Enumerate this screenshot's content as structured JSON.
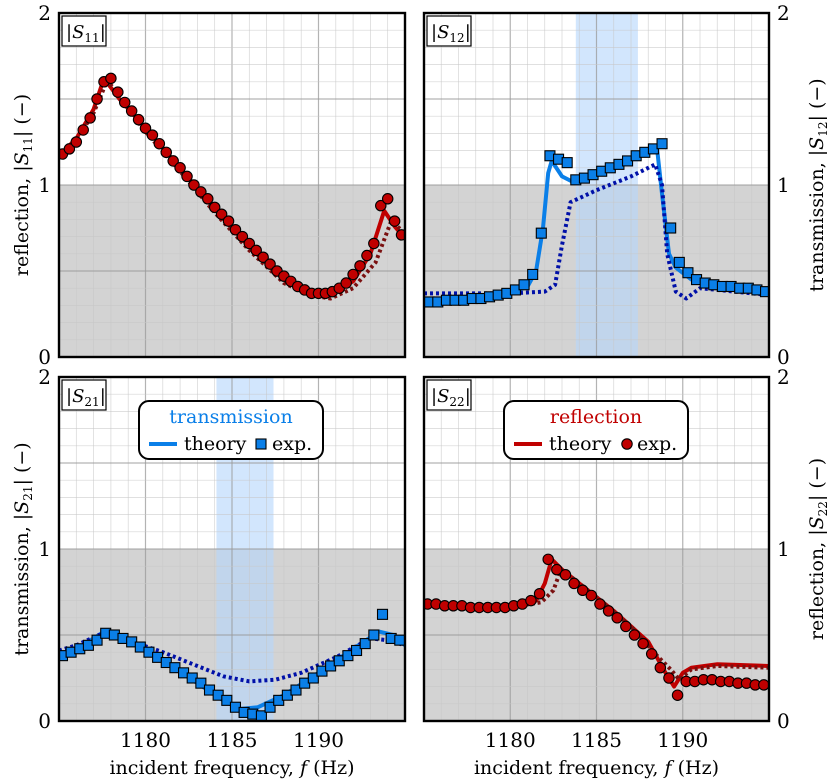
{
  "figure": {
    "xlabel": "incident frequency, f (Hz)",
    "colors": {
      "reflection": "#c00000",
      "reflection_dotted": "#7a1010",
      "transmission": "#0a7fe8",
      "transmission_dotted": "#0010a8",
      "band": "#b6d6fb",
      "shade": "#d3d3d3"
    }
  },
  "legends": {
    "transmission": {
      "title": "transmission",
      "theory": "theory",
      "exp": "exp."
    },
    "reflection": {
      "title": "reflection",
      "theory": "theory",
      "exp": "exp."
    }
  },
  "chart_data": [
    {
      "id": "s11",
      "type": "line",
      "panel_label": "|S11|",
      "ylabel": "reflection, |S11| (−)",
      "ylabel_side": "left",
      "xlim": [
        1175,
        1195
      ],
      "ylim": [
        0,
        2
      ],
      "xticks": [
        1180,
        1185,
        1190
      ],
      "yticks": [
        0,
        1,
        2
      ],
      "xtick_labels": [],
      "ytick_labels": [
        "0",
        "1",
        "2"
      ],
      "shaded_region": {
        "y": [
          0,
          1
        ]
      },
      "band": null,
      "series": [
        {
          "name": "theory",
          "style": "solid",
          "color": "reflection",
          "x": [
            1175,
            1176,
            1177,
            1177.6,
            1178.5,
            1180,
            1182,
            1184,
            1186,
            1188,
            1189.5,
            1190.5,
            1192,
            1193,
            1193.8,
            1194.4,
            1195
          ],
          "y": [
            1.17,
            1.27,
            1.44,
            1.62,
            1.5,
            1.33,
            1.1,
            0.86,
            0.64,
            0.45,
            0.37,
            0.36,
            0.44,
            0.6,
            0.85,
            0.76,
            0.69
          ]
        },
        {
          "name": "theory (dotted)",
          "style": "dotted",
          "color": "reflection_dotted",
          "x": [
            1175,
            1176,
            1177,
            1177.8,
            1178.8,
            1180,
            1182,
            1184,
            1186,
            1188,
            1189.5,
            1190.7,
            1192,
            1193.3,
            1194.2,
            1195
          ],
          "y": [
            1.17,
            1.26,
            1.42,
            1.61,
            1.47,
            1.31,
            1.08,
            0.84,
            0.62,
            0.43,
            0.36,
            0.34,
            0.4,
            0.55,
            0.79,
            0.72
          ]
        },
        {
          "name": "exp.",
          "style": "markers",
          "marker": "circle",
          "color": "reflection",
          "x": [
            1175.2,
            1175.6,
            1176.0,
            1176.4,
            1176.8,
            1177.2,
            1177.6,
            1178.0,
            1178.4,
            1178.8,
            1179.2,
            1179.6,
            1180.0,
            1180.4,
            1180.8,
            1181.2,
            1181.6,
            1182.0,
            1182.4,
            1182.8,
            1183.2,
            1183.6,
            1184.0,
            1184.4,
            1184.8,
            1185.2,
            1185.6,
            1186.0,
            1186.4,
            1186.8,
            1187.2,
            1187.6,
            1188.0,
            1188.4,
            1188.8,
            1189.2,
            1189.6,
            1190.0,
            1190.4,
            1190.8,
            1191.2,
            1191.6,
            1192.0,
            1192.4,
            1192.8,
            1193.2,
            1193.6,
            1194.0,
            1194.4,
            1194.8
          ],
          "y": [
            1.18,
            1.21,
            1.25,
            1.32,
            1.39,
            1.5,
            1.6,
            1.62,
            1.54,
            1.48,
            1.43,
            1.38,
            1.33,
            1.29,
            1.24,
            1.19,
            1.14,
            1.1,
            1.05,
            1.0,
            0.96,
            0.92,
            0.87,
            0.83,
            0.79,
            0.74,
            0.7,
            0.66,
            0.62,
            0.58,
            0.54,
            0.5,
            0.47,
            0.44,
            0.41,
            0.39,
            0.37,
            0.37,
            0.37,
            0.38,
            0.4,
            0.43,
            0.48,
            0.53,
            0.59,
            0.66,
            0.88,
            0.92,
            0.79,
            0.71
          ]
        }
      ]
    },
    {
      "id": "s12",
      "type": "line",
      "panel_label": "|S12|",
      "ylabel": "transmission, |S12| (−)",
      "ylabel_side": "right",
      "xlim": [
        1175,
        1195
      ],
      "ylim": [
        0,
        2
      ],
      "xticks": [
        1180,
        1185,
        1190
      ],
      "yticks": [
        0,
        1,
        2
      ],
      "xtick_labels": [],
      "ytick_labels": [
        "0",
        "1",
        "2"
      ],
      "shaded_region": {
        "y": [
          0,
          1
        ]
      },
      "band": {
        "x": [
          1183.8,
          1187.4
        ]
      },
      "series": [
        {
          "name": "theory",
          "style": "solid",
          "color": "transmission",
          "x": [
            1175,
            1178,
            1180,
            1181,
            1181.5,
            1181.9,
            1182.2,
            1182.4,
            1183,
            1183.6,
            1184.5,
            1186,
            1187.5,
            1188.5,
            1188.8,
            1189.2,
            1189.6,
            1190.5,
            1192,
            1195
          ],
          "y": [
            0.33,
            0.35,
            0.37,
            0.41,
            0.5,
            0.75,
            1.07,
            1.14,
            1.05,
            1.02,
            1.06,
            1.12,
            1.18,
            1.22,
            0.95,
            0.6,
            0.52,
            0.45,
            0.42,
            0.38
          ]
        },
        {
          "name": "theory (dotted)",
          "style": "dotted",
          "color": "transmission_dotted",
          "x": [
            1175,
            1178,
            1180,
            1182,
            1182.6,
            1183,
            1183.5,
            1185,
            1187,
            1188.4,
            1188.8,
            1189.1,
            1189.6,
            1190.2,
            1191,
            1193,
            1195
          ],
          "y": [
            0.37,
            0.37,
            0.37,
            0.38,
            0.42,
            0.65,
            0.9,
            0.97,
            1.05,
            1.12,
            1.0,
            0.6,
            0.38,
            0.34,
            0.4,
            0.38,
            0.36
          ]
        },
        {
          "name": "exp.",
          "style": "markers",
          "marker": "square",
          "color": "transmission",
          "x": [
            1175.3,
            1175.8,
            1176.3,
            1176.8,
            1177.3,
            1177.8,
            1178.3,
            1178.8,
            1179.3,
            1179.8,
            1180.3,
            1180.8,
            1181.3,
            1181.8,
            1182.3,
            1182.8,
            1183.3,
            1183.8,
            1184.3,
            1184.8,
            1185.3,
            1185.8,
            1186.3,
            1186.8,
            1187.3,
            1187.8,
            1188.3,
            1188.8,
            1189.3,
            1189.8,
            1190.3,
            1190.8,
            1191.3,
            1191.8,
            1192.3,
            1192.8,
            1193.3,
            1193.8,
            1194.3,
            1194.8
          ],
          "y": [
            0.32,
            0.32,
            0.33,
            0.33,
            0.33,
            0.34,
            0.34,
            0.35,
            0.36,
            0.37,
            0.39,
            0.42,
            0.48,
            0.72,
            1.17,
            1.15,
            1.13,
            1.03,
            1.04,
            1.06,
            1.08,
            1.1,
            1.12,
            1.14,
            1.17,
            1.19,
            1.21,
            1.24,
            0.75,
            0.55,
            0.49,
            0.45,
            0.43,
            0.42,
            0.41,
            0.41,
            0.4,
            0.4,
            0.39,
            0.38
          ]
        }
      ]
    },
    {
      "id": "s21",
      "type": "line",
      "panel_label": "|S21|",
      "ylabel": "transmission, |S21| (−)",
      "ylabel_side": "left",
      "xlim": [
        1175,
        1195
      ],
      "ylim": [
        0,
        2
      ],
      "xticks": [
        1180,
        1185,
        1190
      ],
      "yticks": [
        0,
        1,
        2
      ],
      "xtick_labels": [
        "1180",
        "1185",
        "1190"
      ],
      "ytick_labels": [
        "0",
        "1",
        "2"
      ],
      "shaded_region": {
        "y": [
          0,
          1
        ]
      },
      "band": {
        "x": [
          1184.1,
          1187.4
        ]
      },
      "legend": "transmission",
      "series": [
        {
          "name": "theory",
          "style": "solid",
          "color": "transmission",
          "x": [
            1175,
            1176,
            1177,
            1177.6,
            1179,
            1181,
            1183,
            1184.5,
            1185.5,
            1186.5,
            1188,
            1190,
            1192,
            1193.5,
            1194.3,
            1195
          ],
          "y": [
            0.38,
            0.42,
            0.48,
            0.52,
            0.47,
            0.35,
            0.22,
            0.12,
            0.07,
            0.08,
            0.15,
            0.28,
            0.42,
            0.52,
            0.5,
            0.44
          ]
        },
        {
          "name": "theory (dotted)",
          "style": "dotted",
          "color": "transmission_dotted",
          "x": [
            1175,
            1176,
            1177.3,
            1179,
            1181,
            1183,
            1184.5,
            1186,
            1187.5,
            1189,
            1191,
            1193,
            1194,
            1195
          ],
          "y": [
            0.41,
            0.44,
            0.5,
            0.47,
            0.4,
            0.32,
            0.26,
            0.23,
            0.24,
            0.28,
            0.37,
            0.48,
            0.47,
            0.44
          ]
        },
        {
          "name": "exp.",
          "style": "markers",
          "marker": "square",
          "color": "transmission",
          "x": [
            1175.2,
            1175.7,
            1176.2,
            1176.7,
            1177.2,
            1177.7,
            1178.2,
            1178.7,
            1179.2,
            1179.7,
            1180.2,
            1180.7,
            1181.2,
            1181.7,
            1182.2,
            1182.7,
            1183.2,
            1183.7,
            1184.2,
            1184.7,
            1185.2,
            1185.7,
            1186.2,
            1186.7,
            1187.2,
            1187.7,
            1188.2,
            1188.7,
            1189.2,
            1189.7,
            1190.2,
            1190.7,
            1191.2,
            1191.7,
            1192.2,
            1192.7,
            1193.2,
            1193.7,
            1194.2,
            1194.7
          ],
          "y": [
            0.38,
            0.4,
            0.42,
            0.44,
            0.47,
            0.51,
            0.5,
            0.48,
            0.46,
            0.43,
            0.4,
            0.37,
            0.34,
            0.31,
            0.28,
            0.25,
            0.22,
            0.18,
            0.15,
            0.12,
            0.08,
            0.05,
            0.04,
            0.03,
            0.08,
            0.12,
            0.15,
            0.18,
            0.22,
            0.25,
            0.29,
            0.32,
            0.35,
            0.38,
            0.41,
            0.45,
            0.5,
            0.62,
            0.48,
            0.47
          ]
        }
      ]
    },
    {
      "id": "s22",
      "type": "line",
      "panel_label": "|S22|",
      "ylabel": "reflection, |S22| (−)",
      "ylabel_side": "right",
      "xlim": [
        1175,
        1195
      ],
      "ylim": [
        0,
        2
      ],
      "xticks": [
        1180,
        1185,
        1190
      ],
      "yticks": [
        0,
        1,
        2
      ],
      "xtick_labels": [
        "1180",
        "1185",
        "1190"
      ],
      "ytick_labels": [
        "0",
        "1",
        "2"
      ],
      "shaded_region": {
        "y": [
          0,
          1
        ]
      },
      "band": null,
      "legend": "reflection",
      "series": [
        {
          "name": "theory",
          "style": "solid",
          "color": "reflection",
          "x": [
            1175,
            1177,
            1179,
            1180.5,
            1181.5,
            1182,
            1182.4,
            1183,
            1184,
            1186,
            1188,
            1189,
            1189.5,
            1190,
            1190.5,
            1192,
            1195
          ],
          "y": [
            0.69,
            0.67,
            0.66,
            0.67,
            0.7,
            0.8,
            0.94,
            0.88,
            0.8,
            0.64,
            0.46,
            0.28,
            0.2,
            0.28,
            0.31,
            0.33,
            0.32
          ]
        },
        {
          "name": "theory (dotted)",
          "style": "dotted",
          "color": "reflection_dotted",
          "x": [
            1175,
            1177,
            1179,
            1180.5,
            1181.8,
            1182.5,
            1182.9,
            1183.5,
            1185,
            1187,
            1188.5,
            1189.3,
            1189.8,
            1190.5,
            1192,
            1195
          ],
          "y": [
            0.69,
            0.67,
            0.66,
            0.67,
            0.69,
            0.76,
            0.87,
            0.84,
            0.72,
            0.55,
            0.38,
            0.3,
            0.24,
            0.3,
            0.32,
            0.31
          ]
        },
        {
          "name": "exp.",
          "style": "markers",
          "marker": "circle",
          "color": "reflection",
          "x": [
            1175.2,
            1175.7,
            1176.2,
            1176.7,
            1177.2,
            1177.7,
            1178.2,
            1178.7,
            1179.2,
            1179.7,
            1180.2,
            1180.7,
            1181.2,
            1181.7,
            1182.2,
            1182.7,
            1183.2,
            1183.7,
            1184.2,
            1184.7,
            1185.2,
            1185.7,
            1186.2,
            1186.7,
            1187.2,
            1187.7,
            1188.2,
            1188.7,
            1189.2,
            1189.7,
            1190.2,
            1190.7,
            1191.2,
            1191.7,
            1192.2,
            1192.7,
            1193.2,
            1193.7,
            1194.2,
            1194.7
          ],
          "y": [
            0.68,
            0.68,
            0.67,
            0.67,
            0.67,
            0.66,
            0.66,
            0.66,
            0.66,
            0.66,
            0.67,
            0.68,
            0.7,
            0.74,
            0.94,
            0.88,
            0.85,
            0.8,
            0.76,
            0.73,
            0.68,
            0.64,
            0.6,
            0.55,
            0.5,
            0.45,
            0.39,
            0.31,
            0.25,
            0.15,
            0.23,
            0.23,
            0.24,
            0.24,
            0.23,
            0.23,
            0.22,
            0.22,
            0.21,
            0.21
          ]
        }
      ]
    }
  ]
}
